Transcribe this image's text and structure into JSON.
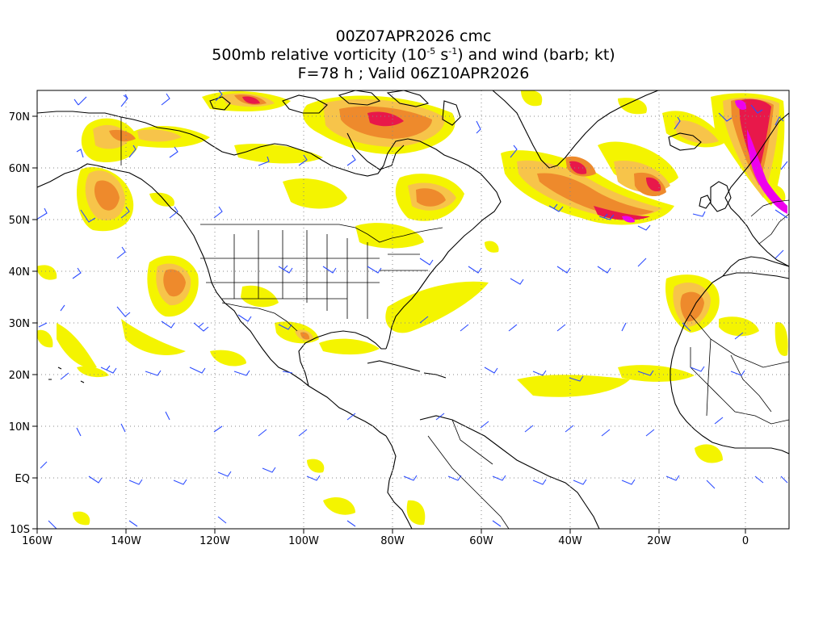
{
  "title": {
    "line1": "00Z07APR2026 cmc",
    "line2_pre": "500mb relative vorticity (10",
    "line2_exp1": "-5",
    "line2_mid": " s",
    "line2_exp2": "-1",
    "line2_post": ") and wind (barb; kt)",
    "line3": "F=78 h ; Valid 06Z10APR2026"
  },
  "axes": {
    "lon_labels": [
      "160W",
      "140W",
      "120W",
      "100W",
      "80W",
      "60W",
      "40W",
      "20W",
      "0"
    ],
    "lon_values": [
      -160,
      -140,
      -120,
      -100,
      -80,
      -60,
      -40,
      -20,
      0
    ],
    "lat_labels": [
      "70N",
      "60N",
      "50N",
      "40N",
      "30N",
      "20N",
      "10N",
      "EQ",
      "10S"
    ],
    "lat_values": [
      70,
      60,
      50,
      40,
      30,
      20,
      10,
      0,
      -10
    ],
    "lon_range": [
      -160,
      10
    ],
    "lat_range": [
      -10,
      75
    ],
    "grid": "dotted"
  },
  "colors": {
    "vort_low": "#f4f400",
    "vort_mid": "#f7c44a",
    "vort_high": "#ee8a2c",
    "vort_max": "#e8184a",
    "vort_extreme": "#ee00ee",
    "barb": "#2b4bff",
    "coast": "#000000",
    "grid": "#888888"
  },
  "map": {
    "projection": "cylindrical equidistant",
    "field": "500mb relative vorticity",
    "vectors": "wind barbs"
  }
}
